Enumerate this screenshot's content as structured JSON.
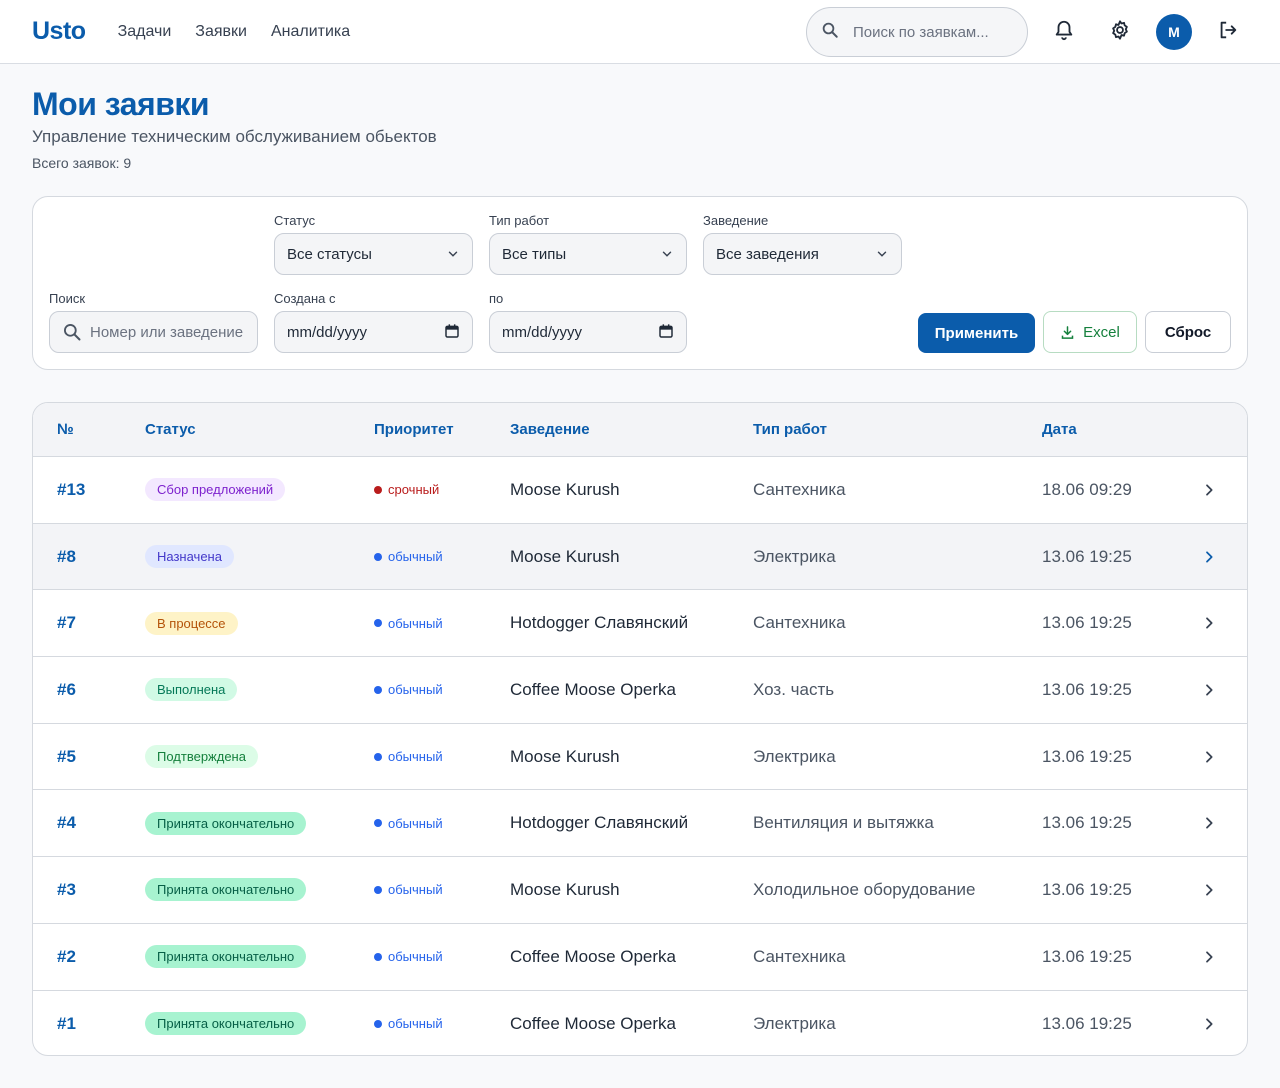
{
  "header": {
    "logo": "Usto",
    "nav": [
      "Задачи",
      "Заявки",
      "Аналитика"
    ],
    "search_placeholder": "Поиск по заявкам...",
    "avatar_initial": "M"
  },
  "page": {
    "title": "Мои заявки",
    "subtitle": "Управление техническим обслуживанием обьектов",
    "count": "Всего заявок: 9"
  },
  "filters": {
    "status_label": "Статус",
    "status_value": "Все статусы",
    "type_label": "Тип работ",
    "type_value": "Все типы",
    "venue_label": "Заведение",
    "venue_value": "Все заведения",
    "search_label": "Поиск",
    "search_placeholder": "Номер или заведение",
    "from_label": "Создана с",
    "from_value": "mm/dd/yyyy",
    "to_label": "по",
    "to_value": "mm/dd/yyyy",
    "apply": "Применить",
    "excel": "Excel",
    "reset": "Сброс"
  },
  "table": {
    "headers": [
      "№",
      "Статус",
      "Приоритет",
      "Заведение",
      "Тип работ",
      "Дата"
    ],
    "rows": [
      {
        "num": "#13",
        "status": "Сбор предложений",
        "priority": "срочный",
        "venue": "Moose Kurush",
        "type": "Сантехника",
        "date": "18.06 09:29"
      },
      {
        "num": "#8",
        "status": "Назначена",
        "priority": "обычный",
        "venue": "Moose Kurush",
        "type": "Электрика",
        "date": "13.06 19:25"
      },
      {
        "num": "#7",
        "status": "В процессе",
        "priority": "обычный",
        "venue": "Hotdogger Славянский",
        "type": "Сантехника",
        "date": "13.06 19:25"
      },
      {
        "num": "#6",
        "status": "Выполнена",
        "priority": "обычный",
        "venue": "Coffee Moose Operka",
        "type": "Хоз. часть",
        "date": "13.06 19:25"
      },
      {
        "num": "#5",
        "status": "Подтверждена",
        "priority": "обычный",
        "venue": "Moose Kurush",
        "type": "Электрика",
        "date": "13.06 19:25"
      },
      {
        "num": "#4",
        "status": "Принята окончательно",
        "priority": "обычный",
        "venue": "Hotdogger Славянский",
        "type": "Вентиляция и вытяжка",
        "date": "13.06 19:25"
      },
      {
        "num": "#3",
        "status": "Принята окончательно",
        "priority": "обычный",
        "venue": "Moose Kurush",
        "type": "Холодильное оборудование",
        "date": "13.06 19:25"
      },
      {
        "num": "#2",
        "status": "Принята окончательно",
        "priority": "обычный",
        "venue": "Coffee Moose Operka",
        "type": "Сантехника",
        "date": "13.06 19:25"
      },
      {
        "num": "#1",
        "status": "Принята окончательно",
        "priority": "обычный",
        "venue": "Coffee Moose Operka",
        "type": "Электрика",
        "date": "13.06 19:25"
      }
    ]
  },
  "colors": {
    "brand": "#0b5cab",
    "urgent": "#b91c1c",
    "normal": "#2563eb",
    "status": {
      "Сбор предложений": {
        "bg": "#f3e8ff",
        "fg": "#7e22ce"
      },
      "Назначена": {
        "bg": "#e0e7ff",
        "fg": "#4338ca"
      },
      "В процессе": {
        "bg": "#fef3c7",
        "fg": "#b45309"
      },
      "Выполнена": {
        "bg": "#d1fae5",
        "fg": "#047857"
      },
      "Подтверждена": {
        "bg": "#dcfce7",
        "fg": "#15803d"
      },
      "Принята окончательно": {
        "bg": "#a7f3d0",
        "fg": "#065f46"
      }
    }
  }
}
